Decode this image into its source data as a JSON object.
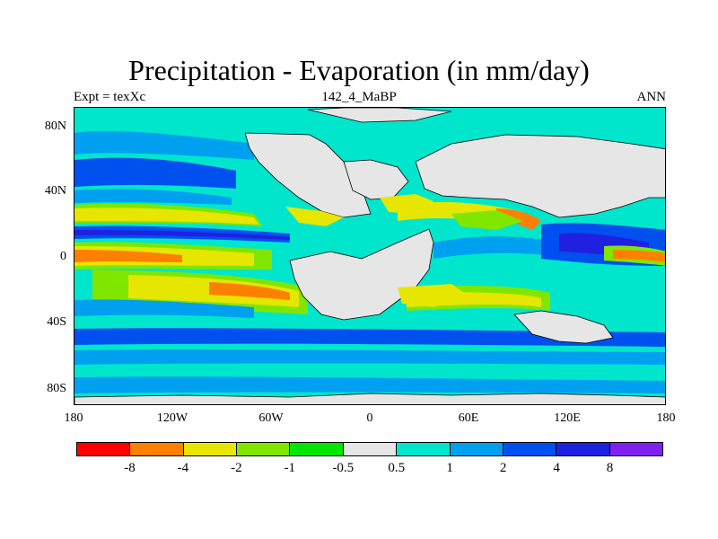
{
  "title": "Precipitation - Evaporation (in mm/day)",
  "subtitle_left": "Expt = texXc",
  "subtitle_center": "142_4_MaBP",
  "subtitle_right": "ANN",
  "lat_labels": [
    "80N",
    "40N",
    "0",
    "40S",
    "80S"
  ],
  "lon_labels": [
    "180",
    "120W",
    "60W",
    "0",
    "60E",
    "120E",
    "180"
  ],
  "colorbar": {
    "colors": [
      "#ff0000",
      "#ff8000",
      "#e6e600",
      "#80e600",
      "#00e600",
      "#e6e6e6",
      "#00e6cc",
      "#00a0f0",
      "#0050f0",
      "#2020e0",
      "#8020f0"
    ],
    "labels": [
      "-8",
      "-4",
      "-2",
      "-1",
      "-0.5",
      "0.5",
      "1",
      "2",
      "4",
      "8"
    ]
  },
  "chart_data": {
    "type": "heatmap",
    "title": "Precipitation - Evaporation (in mm/day)",
    "variable": "P - E",
    "units": "mm/day",
    "x_range": [
      -180,
      180
    ],
    "y_range": [
      -90,
      90
    ],
    "x_ticks": [
      "180",
      "120W",
      "60W",
      "0",
      "60E",
      "120E",
      "180"
    ],
    "y_ticks": [
      "80N",
      "40N",
      "0",
      "40S",
      "80S"
    ],
    "contour_levels": [
      -8,
      -4,
      -2,
      -1,
      -0.5,
      0.5,
      1,
      2,
      4,
      8
    ]
  }
}
